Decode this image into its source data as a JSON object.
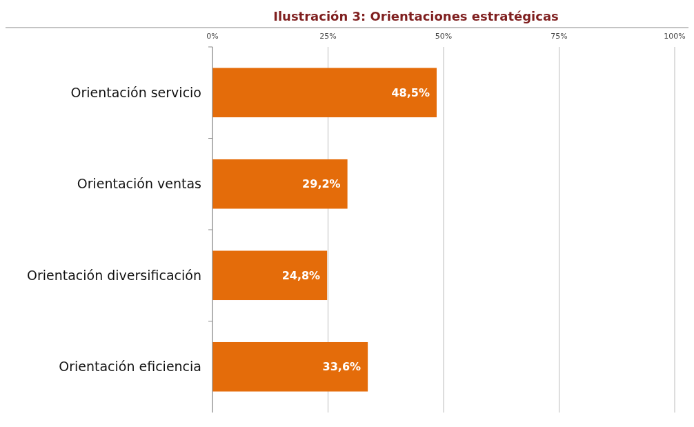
{
  "chart_data": {
    "type": "bar",
    "orientation": "horizontal",
    "title": "Ilustración 3: Orientaciones estratégicas",
    "categories": [
      "Orientación servicio",
      "Orientación ventas",
      "Orientación diversificación",
      "Orientación eficiencia"
    ],
    "values": [
      48.5,
      29.2,
      24.8,
      33.6
    ],
    "color": "#e46c0a",
    "value_labels": [
      "48,5%",
      "29,2%",
      "24,8%",
      "33,6%"
    ],
    "xlim": [
      0,
      100
    ],
    "xticks": [
      {
        "value": 0,
        "label": "0%"
      },
      {
        "value": 25,
        "label": "25%"
      },
      {
        "value": 50,
        "label": "50%"
      },
      {
        "value": 75,
        "label": "75%"
      },
      {
        "value": 100,
        "label": "100%"
      }
    ],
    "grid": "x"
  }
}
